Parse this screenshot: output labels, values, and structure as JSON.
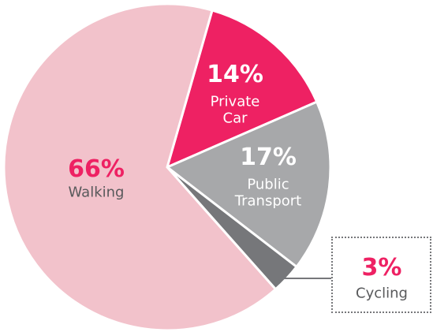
{
  "chart_data": {
    "type": "pie",
    "categories": [
      "Private Car",
      "Public Transport",
      "Cycling",
      "Walking"
    ],
    "values": [
      14,
      17,
      3,
      66
    ],
    "value_labels": [
      "14%",
      "17%",
      "3%",
      "66%"
    ],
    "colors": [
      "#ee2163",
      "#a7a8aa",
      "#76777a",
      "#f2c2cb"
    ]
  }
}
